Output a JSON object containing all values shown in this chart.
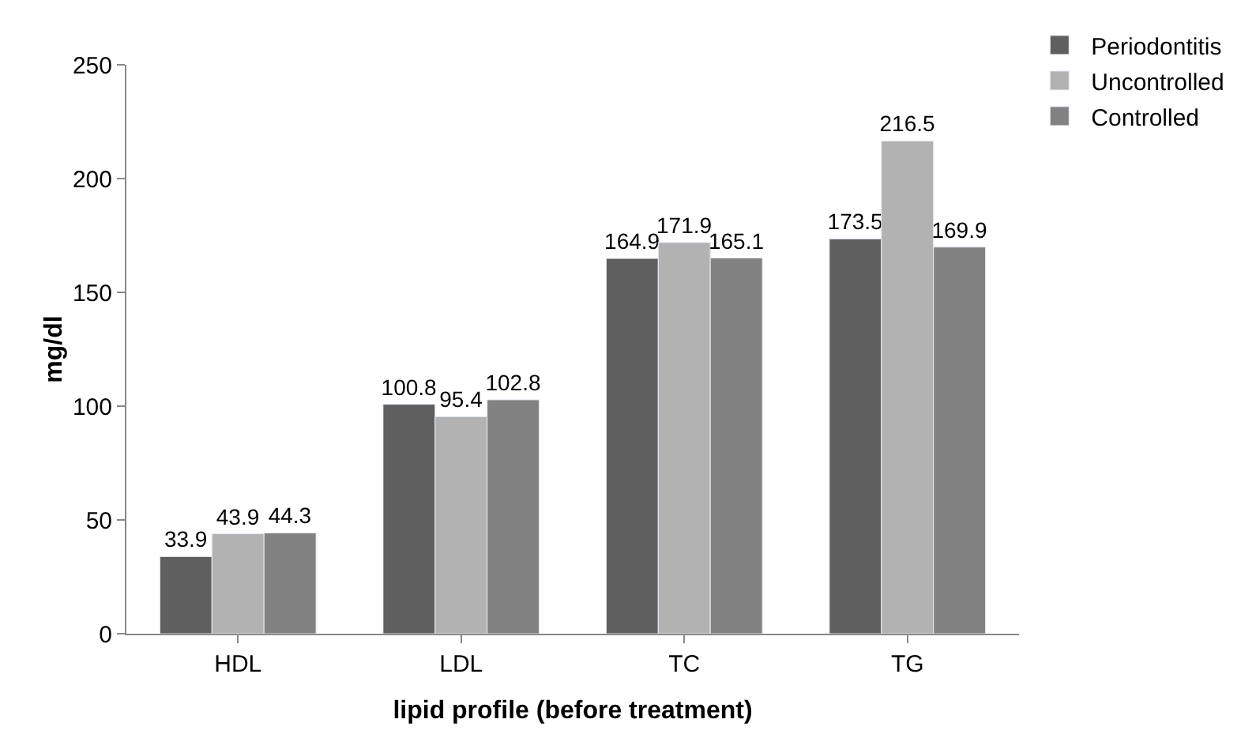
{
  "chart_data": {
    "type": "bar",
    "xlabel": "lipid profile (before treatment)",
    "ylabel": "mg/dl",
    "categories": [
      "HDL",
      "LDL",
      "TC",
      "TG"
    ],
    "series": [
      {
        "name": "Periodontitis",
        "color": "#5f5f5f",
        "values": [
          33.9,
          100.8,
          164.9,
          173.5
        ]
      },
      {
        "name": "Uncontrolled",
        "color": "#b2b2b2",
        "values": [
          43.9,
          95.4,
          171.9,
          216.5
        ]
      },
      {
        "name": "Controlled",
        "color": "#828282",
        "values": [
          44.3,
          102.8,
          165.1,
          169.9
        ]
      }
    ],
    "ylim": [
      0,
      250
    ],
    "yticks": [
      0,
      50,
      100,
      150,
      200,
      250
    ],
    "legend": "top right",
    "data_labels": true
  }
}
